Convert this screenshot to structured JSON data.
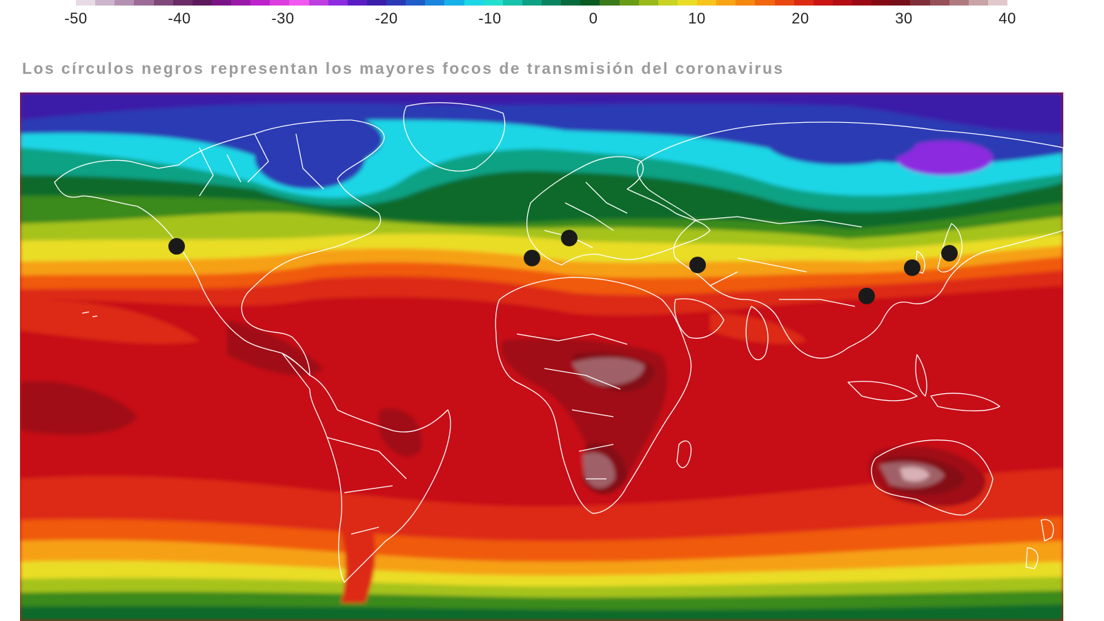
{
  "legend": {
    "colors": [
      "#e6dbe5",
      "#ccb4cc",
      "#b592b3",
      "#9c6c98",
      "#7f4a7a",
      "#6a2c67",
      "#5c1a5c",
      "#7a1485",
      "#9a1aa8",
      "#bd22cb",
      "#dd3ddf",
      "#f058ef",
      "#c03ddf",
      "#8c2be0",
      "#5a1dc4",
      "#3a1ea8",
      "#2b3ab4",
      "#1f5dc8",
      "#1a86dd",
      "#15b1e8",
      "#1ed6e6",
      "#22dfcf",
      "#16c2aa",
      "#0ea284",
      "#0a8560",
      "#066a3c",
      "#0a5b23",
      "#3a7a1a",
      "#6a9c18",
      "#99b91c",
      "#c9d323",
      "#eadd28",
      "#f7c31d",
      "#f8a515",
      "#f68811",
      "#f1670f",
      "#e84810",
      "#db2b13",
      "#cb1515",
      "#b50d15",
      "#9b0a14",
      "#820813",
      "#75101a",
      "#803039",
      "#955058",
      "#ae7a80",
      "#c8a3a7",
      "#e1c9cb"
    ],
    "ticks": [
      "-50",
      "-40",
      "-30",
      "-20",
      "-10",
      "0",
      "10",
      "20",
      "30",
      "40"
    ]
  },
  "caption": "Los círculos negros representan los mayores focos de transmisión del coronavirus",
  "map": {
    "name": "world-temperature-map",
    "hotspots": [
      "california",
      "madrid",
      "milan",
      "tehran",
      "wuhan",
      "seoul",
      "tokyo"
    ],
    "colors": {
      "deep_cold": "#3b1ea8",
      "violet": "#8c2be0",
      "cold_blue": "#2b3ab4",
      "cyan": "#1ed6e6",
      "teal": "#0ea284",
      "dark_green": "#0a6b2a",
      "green": "#3a8a1a",
      "yellow_green": "#a6c31c",
      "yellow": "#eadd28",
      "orange": "#f6a015",
      "orange_red": "#f05a10",
      "red": "#dd2b13",
      "deep_red": "#c70f12",
      "dark_red": "#a00a14",
      "maroon": "#850814",
      "hot_grey": "#a06068",
      "hottest": "#d8b0b5",
      "coast": "#ffffff",
      "dot": "#1a1a1a"
    }
  }
}
